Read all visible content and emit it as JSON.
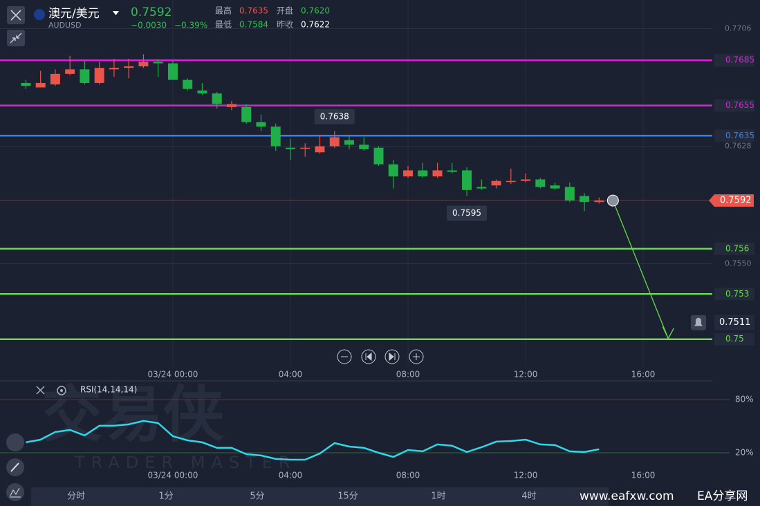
{
  "header": {
    "pair": "澳元/美元",
    "symbol": "AUDUSD",
    "price": "0.7592",
    "change": "−0.0030",
    "change_pct": "−0.39%",
    "stats": [
      {
        "label": "最高",
        "value": "0.7635"
      },
      {
        "label": "开盘",
        "value": "0.7620"
      },
      {
        "label": "最低",
        "value": "0.7584"
      },
      {
        "label": "昨收",
        "value": "0.7622"
      }
    ]
  },
  "chart_data": [
    {
      "type": "candlestick",
      "x": [
        -5,
        -4.5,
        -4,
        -3.5,
        -3,
        -2.5,
        -2,
        -1.5,
        -1,
        -0.5,
        0,
        0.5,
        1,
        1.5,
        2,
        2.5,
        3,
        3.5,
        4,
        4.5,
        5,
        5.5,
        6,
        6.5,
        7,
        7.5,
        8,
        8.5,
        9,
        9.5,
        10,
        10.5,
        11,
        11.5,
        12,
        12.5,
        13,
        13.5,
        14,
        14.5
      ],
      "open": [
        0.767,
        0.7667,
        0.7669,
        0.7676,
        0.7679,
        0.767,
        0.7679,
        0.768,
        0.7681,
        0.7684,
        0.7683,
        0.7672,
        0.7665,
        0.7663,
        0.7654,
        0.7654,
        0.7644,
        0.7641,
        0.7627,
        0.7627,
        0.7624,
        0.7628,
        0.7632,
        0.7629,
        0.7627,
        0.7616,
        0.7608,
        0.7612,
        0.7608,
        0.7612,
        0.7612,
        0.7601,
        0.7602,
        0.7605,
        0.7605,
        0.7606,
        0.7602,
        0.7601,
        0.7595,
        0.7591
      ],
      "high": [
        0.7672,
        0.7678,
        0.7679,
        0.7688,
        0.7685,
        0.7684,
        0.7686,
        0.7686,
        0.7689,
        0.7686,
        0.7685,
        0.7673,
        0.767,
        0.7664,
        0.7658,
        0.7656,
        0.7649,
        0.7643,
        0.7633,
        0.763,
        0.7635,
        0.7638,
        0.7635,
        0.7634,
        0.7628,
        0.7619,
        0.7615,
        0.7617,
        0.7617,
        0.7617,
        0.7614,
        0.7606,
        0.7606,
        0.7613,
        0.761,
        0.7607,
        0.7604,
        0.7604,
        0.7597,
        0.7594
      ],
      "low": [
        0.7666,
        0.7667,
        0.7668,
        0.7675,
        0.7669,
        0.7669,
        0.7674,
        0.7673,
        0.768,
        0.7674,
        0.7672,
        0.7665,
        0.7662,
        0.7653,
        0.7652,
        0.7643,
        0.7638,
        0.7625,
        0.7619,
        0.7621,
        0.7623,
        0.7627,
        0.7626,
        0.7625,
        0.7615,
        0.76,
        0.7607,
        0.7607,
        0.7607,
        0.761,
        0.7595,
        0.7599,
        0.76,
        0.7603,
        0.7604,
        0.76,
        0.7599,
        0.7591,
        0.7585,
        0.759
      ],
      "close": [
        0.7668,
        0.767,
        0.7676,
        0.7679,
        0.767,
        0.768,
        0.768,
        0.7681,
        0.7684,
        0.7683,
        0.7672,
        0.7666,
        0.7663,
        0.7656,
        0.7656,
        0.7644,
        0.7641,
        0.7628,
        0.7626,
        0.7627,
        0.7628,
        0.7634,
        0.7629,
        0.7626,
        0.7616,
        0.7608,
        0.7612,
        0.7608,
        0.7612,
        0.7611,
        0.7599,
        0.76,
        0.7605,
        0.7605,
        0.7606,
        0.7601,
        0.76,
        0.7592,
        0.7591,
        0.7592
      ],
      "up_color": "#e8554b",
      "down_color": "#1fae48",
      "xlim": [
        -5.88,
        18.35
      ],
      "ylim": [
        0.7482,
        0.7725
      ],
      "xticks": [
        {
          "value": 0,
          "label": "03/24 00:00"
        },
        {
          "value": 4,
          "label": "04:00"
        },
        {
          "value": 8,
          "label": "08:00"
        },
        {
          "value": 12,
          "label": "12:00"
        },
        {
          "value": 16,
          "label": "16:00"
        }
      ],
      "yticks": [
        0.7706,
        0.7628,
        {
          "value": 0.755,
          "label": "0.7550"
        }
      ],
      "grid": true,
      "levels": [
        {
          "value": 0.7685,
          "color": "#e020d8"
        },
        {
          "value": 0.7655,
          "color": "#e020d8"
        },
        {
          "value": 0.7635,
          "color": "#3d7ee8"
        },
        {
          "value": 0.756,
          "color": "#66dd44"
        },
        {
          "value": 0.753,
          "color": "#66dd44"
        },
        {
          "value": 0.75,
          "color": "#66dd44"
        }
      ],
      "current_price": 0.7592,
      "alert_price": 0.7511,
      "annotations": {
        "high": 0.7638,
        "low": 0.7595
      }
    },
    {
      "type": "line",
      "title": "RSI(14,14,14)",
      "color": "#2fd8e8",
      "x": [
        -5,
        -4.5,
        -4,
        -3.5,
        -3,
        -2.5,
        -2,
        -1.5,
        -1,
        -0.5,
        0,
        0.5,
        1,
        1.5,
        2,
        2.5,
        3,
        3.5,
        4,
        4.5,
        5,
        5.5,
        6,
        6.5,
        7,
        7.5,
        8,
        8.5,
        9,
        9.5,
        10,
        10.5,
        11,
        11.5,
        12,
        12.5,
        13,
        13.5,
        14,
        14.5
      ],
      "values": [
        31.7,
        34.8,
        43.4,
        45.7,
        39.5,
        50.4,
        50.4,
        52,
        55.9,
        53.5,
        38.7,
        34,
        31.7,
        25.5,
        25.5,
        18.4,
        16.9,
        13,
        12.2,
        12.2,
        19.2,
        30.9,
        27,
        25.5,
        20,
        15.3,
        23.1,
        21.6,
        29.4,
        27.8,
        20.8,
        26.2,
        32.5,
        33.2,
        34.8,
        29.4,
        28.6,
        21.6,
        20.8,
        23.9
      ],
      "xlim": [
        -5.88,
        18.35
      ],
      "ylim": [
        -19,
        101
      ],
      "xticks": [
        {
          "value": 0,
          "label": "03/24 00:00"
        },
        {
          "value": 4,
          "label": "04:00"
        },
        {
          "value": 8,
          "label": "08:00"
        },
        {
          "value": 12,
          "label": "12:00"
        },
        {
          "value": 16,
          "label": "16:00"
        }
      ],
      "yticks": [
        {
          "value": 80,
          "label": "80%"
        },
        {
          "value": 20,
          "label": "20%"
        }
      ]
    }
  ],
  "timeframes": [
    "分时",
    "1分",
    "5分",
    "15分",
    "1时",
    "4时"
  ],
  "watermark": {
    "logo": "交易侠",
    "logo_sub": "TRADER MASTER",
    "site": "www.eafxw.com",
    "site_name": "EA分享网"
  }
}
